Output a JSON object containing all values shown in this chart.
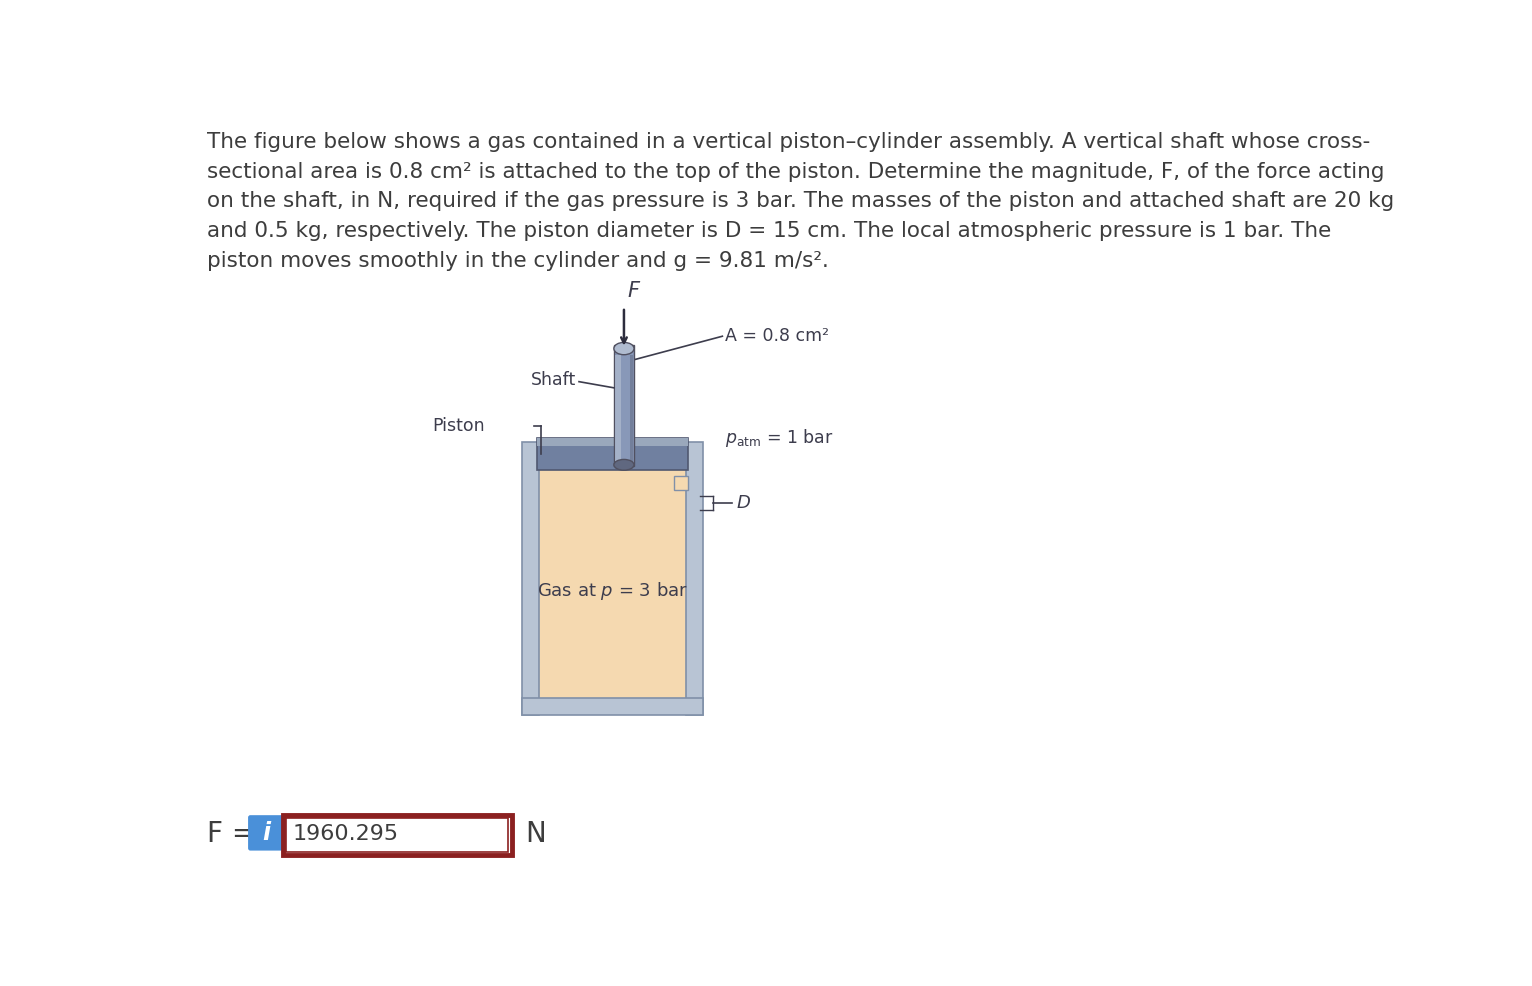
{
  "title_text": "The figure below shows a gas contained in a vertical piston–cylinder assembly. A vertical shaft whose cross-\nsectional area is 0.8 cm² is attached to the top of the piston. Determine the magnitude, F, of the force acting\non the shaft, in N, required if the gas pressure is 3 bar. The masses of the piston and attached shaft are 20 kg\nand 0.5 kg, respectively. The piston diameter is D = 15 cm. The local atmospheric pressure is 1 bar. The\npiston moves smoothly in the cylinder and g = 9.81 m/s².",
  "answer_value": "1960.295",
  "answer_unit": "N",
  "bg_color": "#ffffff",
  "text_color": "#3d3d3d",
  "cyl_wall_color": "#b8c4d4",
  "cyl_wall_edge": "#8090a8",
  "piston_color": "#7080a0",
  "piston_edge": "#505870",
  "piston_top_color": "#9aa8bc",
  "gas_color": "#f5d9b0",
  "shaft_mid_color": "#8898b8",
  "shaft_light_color": "#b0bcd0",
  "shaft_dark_color": "#606880",
  "shaft_edge": "#505060",
  "box_border_color": "#8b2020",
  "info_btn_color": "#4a90d9",
  "label_color": "#3d3d4d",
  "figsize": [
    15.32,
    9.86
  ],
  "dpi": 100
}
